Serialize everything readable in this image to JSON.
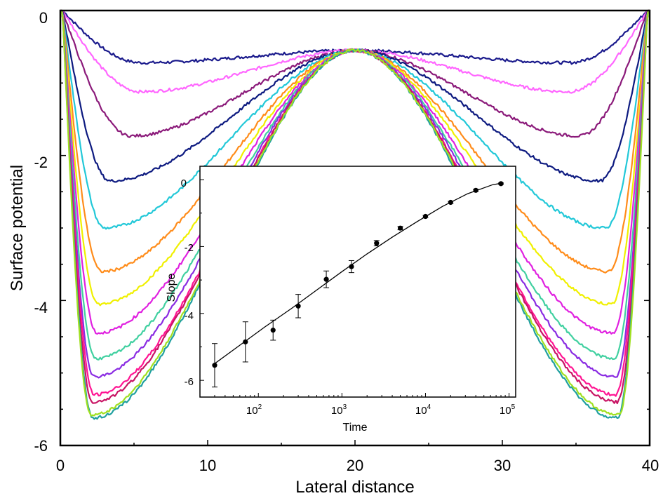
{
  "chart_data": [
    {
      "type": "line",
      "xlabel": "Lateral distance",
      "ylabel": "Surface potential",
      "xlim": [
        0,
        40
      ],
      "ylim": [
        -6,
        0
      ],
      "xticks": [
        "0",
        "10",
        "20",
        "30",
        "40"
      ],
      "yticks": [
        "0",
        "-2",
        "-4",
        "-6"
      ],
      "grid": false,
      "legend": "none",
      "center_x": 20,
      "center_value": -0.55,
      "series": [
        {
          "color": "#1a1a8c",
          "well_x": 5.5,
          "min": -0.72
        },
        {
          "color": "#ff66ff",
          "well_x": 5.5,
          "min": -1.12
        },
        {
          "color": "#8b1a7a",
          "well_x": 4.8,
          "min": -1.73
        },
        {
          "color": "#0d1a80",
          "well_x": 3.4,
          "min": -2.35
        },
        {
          "color": "#22c8d8",
          "well_x": 3.0,
          "min": -3.0
        },
        {
          "color": "#ff8c1a",
          "well_x": 2.8,
          "min": -3.6
        },
        {
          "color": "#f0f000",
          "well_x": 2.6,
          "min": -4.05
        },
        {
          "color": "#e020e0",
          "well_x": 2.5,
          "min": -4.45
        },
        {
          "color": "#40d0a0",
          "well_x": 2.4,
          "min": -4.8
        },
        {
          "color": "#8a2be2",
          "well_x": 2.3,
          "min": -5.05
        },
        {
          "color": "#ff1493",
          "well_x": 2.3,
          "min": -5.3
        },
        {
          "color": "#c81464",
          "well_x": 2.2,
          "min": -5.4
        },
        {
          "color": "#20a0a0",
          "well_x": 2.2,
          "min": -5.62
        },
        {
          "color": "#a0e020",
          "well_x": 2.1,
          "min": -5.58
        }
      ]
    },
    {
      "type": "scatter",
      "subtype": "inset",
      "xlabel": "Time",
      "ylabel": "Slope",
      "xscale": "log",
      "xlim": [
        20,
        120000
      ],
      "ylim": [
        -6.5,
        0.4
      ],
      "xticks": [
        "10^2",
        "10^3",
        "10^4",
        "10^5"
      ],
      "yticks": [
        "0",
        "-2",
        "-4",
        "-6"
      ],
      "x": [
        30,
        70,
        150,
        300,
        650,
        1300,
        2600,
        5000,
        10000,
        20000,
        40000,
        80000
      ],
      "y": [
        -5.55,
        -4.85,
        -4.5,
        -3.78,
        -2.98,
        -2.6,
        -1.9,
        -1.45,
        -1.1,
        -0.68,
        -0.32,
        -0.12
      ],
      "yerr": [
        0.65,
        0.6,
        0.3,
        0.35,
        0.25,
        0.18,
        0.08,
        0.05,
        0.03,
        0.03,
        0.03,
        0.02
      ],
      "fit": {
        "x": [
          30,
          60,
          120,
          250,
          500,
          1000,
          2000,
          4000,
          8000,
          16000,
          32000,
          64000,
          85000
        ],
        "y": [
          -5.5,
          -4.95,
          -4.4,
          -3.85,
          -3.3,
          -2.75,
          -2.22,
          -1.72,
          -1.25,
          -0.8,
          -0.42,
          -0.15,
          -0.1
        ]
      }
    }
  ]
}
